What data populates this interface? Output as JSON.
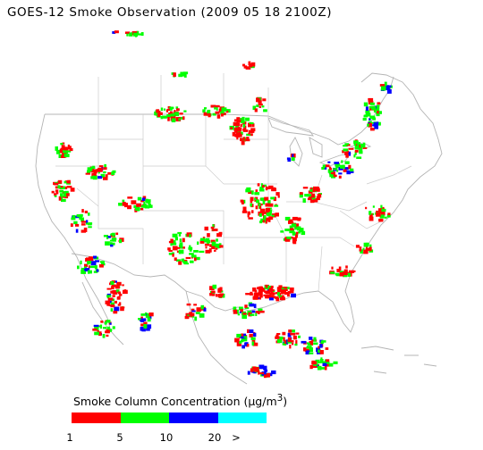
{
  "title": "GOES-12 Smoke Observation (2009 05 18  2100Z)",
  "legend": {
    "title_prefix": "Smoke Column Concentration (",
    "unit_mu": "μ",
    "unit_rest": "g/m",
    "unit_sup": "3",
    "title_suffix": ")",
    "colors": [
      "#ff0000",
      "#00ff00",
      "#0000ff",
      "#00ffff"
    ],
    "ticks": [
      "1",
      "5",
      "10",
      "20",
      ">"
    ]
  }
}
